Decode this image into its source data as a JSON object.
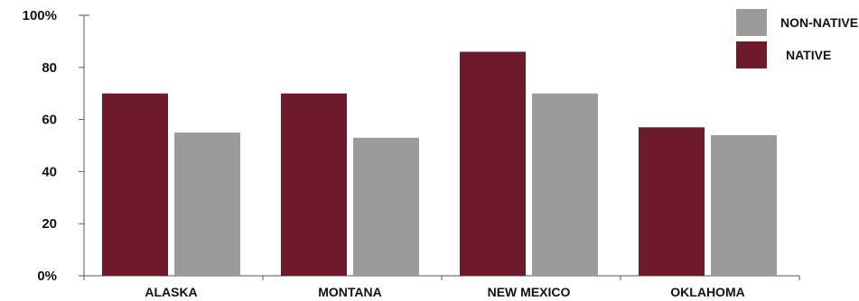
{
  "chart_data": {
    "type": "bar",
    "title": "",
    "xlabel": "",
    "ylabel": "",
    "categories": [
      "ALASKA",
      "MONTANA",
      "NEW MEXICO",
      "OKLAHOMA"
    ],
    "series": [
      {
        "name": "NATIVE",
        "color": "#6e1a2d",
        "values": [
          70,
          70,
          86,
          57
        ]
      },
      {
        "name": "NON-NATIVE",
        "color": "#9b9b9b",
        "values": [
          55,
          53,
          70,
          54
        ]
      }
    ],
    "ylim": [
      0,
      100
    ],
    "yticks": [
      {
        "value": 0,
        "label": "0%"
      },
      {
        "value": 20,
        "label": "20"
      },
      {
        "value": 40,
        "label": "40"
      },
      {
        "value": 60,
        "label": "60"
      },
      {
        "value": 80,
        "label": "80"
      },
      {
        "value": 100,
        "label": "100%"
      }
    ],
    "legend": {
      "placement": "top-right",
      "entries": [
        {
          "label": "NON-NATIVE",
          "color": "#9b9b9b"
        },
        {
          "label": "NATIVE",
          "color": "#6e1a2d"
        }
      ]
    },
    "grid": false
  }
}
